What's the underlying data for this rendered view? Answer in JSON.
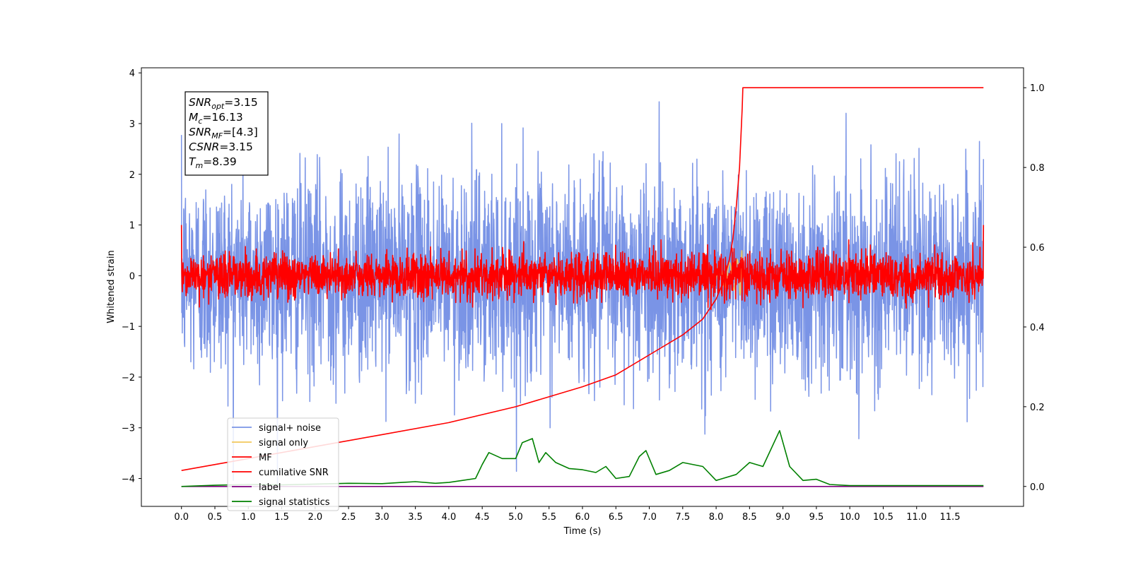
{
  "chart_data": {
    "type": "line",
    "xlabel": "Time (s)",
    "ylabel": "Whitened strain",
    "xlim": [
      -0.6,
      12.6
    ],
    "ylim": [
      -4.55,
      4.1
    ],
    "y2lim": [
      -0.05,
      1.05
    ],
    "x_ticks": [
      "0.0",
      "0.5",
      "1.0",
      "1.5",
      "2.0",
      "2.5",
      "3.0",
      "3.5",
      "4.0",
      "4.5",
      "5.0",
      "5.5",
      "6.0",
      "6.5",
      "7.0",
      "7.5",
      "8.0",
      "8.5",
      "9.0",
      "9.5",
      "10.0",
      "10.5",
      "11.0",
      "11.5"
    ],
    "y_ticks": [
      "4",
      "3",
      "2",
      "1",
      "0",
      "−1",
      "−2",
      "−3",
      "−4"
    ],
    "y2_ticks": [
      "1.0",
      "0.8",
      "0.6",
      "0.4",
      "0.2",
      "0.0"
    ],
    "grid": false,
    "legend_position": "lower-left",
    "annotation": {
      "lines": [
        {
          "sym": "SNR",
          "sub": "opt",
          "val": "=3.15"
        },
        {
          "sym": "M",
          "sub": "c",
          "val": "=16.13"
        },
        {
          "sym": "SNR",
          "sub": "MF",
          "val": "=[4.3]"
        },
        {
          "sym": "CSNR",
          "sub": "",
          "val": "=3.15"
        },
        {
          "sym": "T",
          "sub": "m",
          "val": "=8.39"
        }
      ]
    },
    "series": [
      {
        "name": "signal+ noise",
        "color": "#7a94e6",
        "axis": "left",
        "style": "noise",
        "x_range": [
          0,
          12
        ],
        "sigma": 1.0,
        "range_observed": [
          -4.1,
          3.65
        ]
      },
      {
        "name": "signal only",
        "color": "#f2c85b",
        "axis": "left",
        "style": "chirp",
        "x_range": [
          7.9,
          8.4
        ],
        "merger_time": 8.39,
        "amplitude_peak": 0.55
      },
      {
        "name": "MF",
        "color": "#ff0000",
        "axis": "left",
        "style": "noise",
        "x_range": [
          0,
          12
        ],
        "sigma": 0.22,
        "endpoints": [
          1.0,
          1.0
        ]
      },
      {
        "name": "cumilative SNR",
        "color": "#ff0000",
        "axis": "right",
        "x": [
          0,
          1,
          2,
          3,
          4,
          5,
          6,
          6.5,
          7,
          7.5,
          7.8,
          8.0,
          8.1,
          8.2,
          8.25,
          8.3,
          8.35,
          8.39,
          8.4,
          9,
          10,
          11,
          12
        ],
        "values": [
          0.04,
          0.07,
          0.1,
          0.13,
          0.16,
          0.2,
          0.25,
          0.28,
          0.33,
          0.38,
          0.42,
          0.47,
          0.51,
          0.57,
          0.62,
          0.7,
          0.8,
          0.95,
          1.0,
          1.0,
          1.0,
          1.0,
          1.0
        ]
      },
      {
        "name": "label",
        "color": "#800080",
        "axis": "right",
        "x": [
          0,
          12
        ],
        "values": [
          0,
          0
        ]
      },
      {
        "name": "signal statistics",
        "color": "#008000",
        "axis": "right",
        "x": [
          0,
          0.5,
          1.0,
          1.5,
          2.0,
          2.5,
          3.0,
          3.3,
          3.5,
          3.8,
          4.0,
          4.2,
          4.4,
          4.5,
          4.6,
          4.8,
          5.0,
          5.1,
          5.25,
          5.35,
          5.45,
          5.6,
          5.8,
          6.0,
          6.2,
          6.35,
          6.5,
          6.7,
          6.85,
          6.95,
          7.1,
          7.3,
          7.5,
          7.8,
          8.0,
          8.3,
          8.5,
          8.7,
          8.95,
          9.1,
          9.3,
          9.5,
          9.7,
          10.0,
          11.0,
          11.5,
          12.0
        ],
        "values": [
          0.0,
          0.003,
          0.005,
          0.004,
          0.006,
          0.008,
          0.007,
          0.01,
          0.012,
          0.008,
          0.01,
          0.015,
          0.02,
          0.055,
          0.085,
          0.07,
          0.07,
          0.11,
          0.12,
          0.06,
          0.085,
          0.06,
          0.045,
          0.042,
          0.035,
          0.05,
          0.02,
          0.025,
          0.075,
          0.09,
          0.03,
          0.04,
          0.06,
          0.05,
          0.015,
          0.03,
          0.06,
          0.05,
          0.14,
          0.05,
          0.015,
          0.018,
          0.005,
          0.002,
          0.002,
          0.002,
          0.002
        ]
      }
    ]
  }
}
